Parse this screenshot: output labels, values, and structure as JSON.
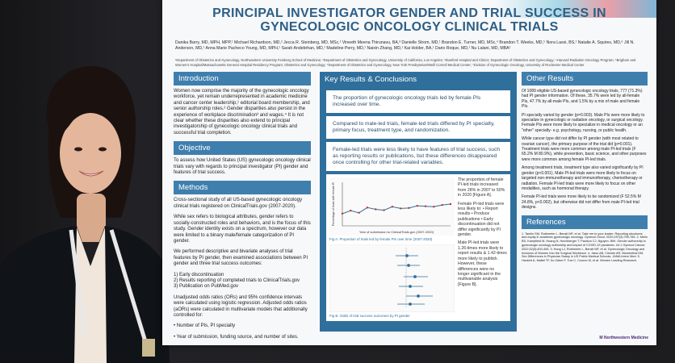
{
  "poster": {
    "title": "PRINCIPAL INVESTIGATOR GENDER AND TRIAL SUCCESS IN GYNECOLOGIC ONCOLOGY CLINICAL TRIALS",
    "authors": "Danika Barry, MD, MPH, MPP,¹ Michael Richardson, MD,² Jecca R. Steinberg, MD, MSc,¹ Vineeth Meena Thirunavu, BA,³ Danielle Strom, MD,¹ Brandon E. Turner, MD, MSc,⁴ Brandon T. Weeks, MD,⁵ Nora Lassi, BS,¹ Natalie A. Squires, MD,⁶ Jill N. Anderson, MD,¹ Anna Marie Pacheco Young, MD, MPH,¹ Sarah Andebrhan, MD,¹ Madeline Perry, MD,¹ Naixin Zhang, MD,¹ Kai Holder, BA,¹ Dario Roque, MD,¹ Nu Lalani, MD, MBA¹",
    "affiliations": "¹Department of Obstetrics and Gynecology, Northwestern University Feinberg School of Medicine; ²Department of Obstetrics and Gynecology, University of California, Los Angeles; ³Stanford Hospital and Clinics; Department of Obstetrics and Gynecology; ⁴Harvard Radiation Oncology Program; ⁵Brigham and Women's Hospital/Massachusetts General Hospital Residency Program; Obstetrics and Gynecology; ⁶Department of Obstetrics and Gynecology, New York Presbyterian/Weill Cornell Medical Center; ⁷Division of Gynecologic Oncology, University of Rochester Medical Center",
    "intro": {
      "heading": "Introduction",
      "text": "Women now comprise the majority of the gynecologic oncology workforce, yet remain underrepresented in academic medicine and cancer center leadership,¹ editorial board membership, and senior authorship roles.² Gender disparities also persist in the experience of workplace discrimination³ and wages.⁴ It is not clear whether these disparities also extend to principal investigatorship of gynecologic oncology clinical trials and successful trial completion."
    },
    "objective": {
      "heading": "Objective",
      "text": "To assess how United States (US) gynecologic oncology clinical trials vary with regards to principal investigator (PI) gender and features of trial success."
    },
    "methods": {
      "heading": "Methods",
      "p1": "Cross-sectional study of all US-based gynecologic oncology clinical trials registered on ClinicalTrials.gov (2007-2020).",
      "p2": "While sex refers to biological attributes, gender refers to socially-constructed roles and behaviors, and is the focus of this study. Gender identity exists on a spectrum, however our data were limited to a binary male/female categorization of PI gender.",
      "p3": "We performed descriptive and bivariate analyses of trial features by PI gender, then examined associations between PI gender and three trial success outcomes:",
      "outcomes": [
        "1) Early discontinuation",
        "2) Results reporting of completed trials to ClinicalTrials.gov",
        "3) Publication on PubMed.gov"
      ],
      "p4": "Unadjusted odds ratios (ORs) and 95% confidence intervals were calculated using logistic regression. Adjusted odds ratios (aORs) were calculated in multivariate models that additionally controlled for:",
      "controls": "• Year of submission, funding source, and number of sites.",
      "controls2": "• Number of PIs, PI specialty"
    },
    "key_results": {
      "heading": "Key Results & Conclusions",
      "p1": "The proportion of gynecologic oncology trials led by female PIs increased over time.",
      "p2": "Compared to male-led trials, female-led trials differed by PI specialty, primary focus, treatment type, and randomization.",
      "p3": "Female-led trials were less likely to have features of trial success, such as reporting results or publications, but these differences disappeared once controlling for other trial-related variables.",
      "fig_a_side": "The proportion of female PI-led trials increased from 28% in 2007 to 50% in 2020 [Figure A].",
      "fig_a_side2": "Female PI-led trials were less likely to: • Report results • Produce publications • Early discontinuation did not differ significantly by PI gender.",
      "fig_b_side": "Male PI-led trials were 1.26-times more likely to report results & 1.42-times more likely to publish. However, these differences were no longer significant in the multivariable analysis [Figure B].",
      "fig_a_cap": "Fig A. Proportion of trials led by female PIs over time (2007-2020)",
      "fig_b_cap": "Fig B. Odds of trial success outcomes by PI gender"
    },
    "other_results": {
      "heading": "Other Results",
      "p1": "Of 1089 eligible US-based gynecologic oncology trials, 777 (71.3%) had PI gender information. Of these, 35.7% were led by all-female PIs, 47.7% by all-male PIs, and 1.5% by a mix of male and female PIs.",
      "p2": "PI specialty varied by gender (p=0.003). Male PIs were more likely to specialize in gynecologic or radiation oncology, or surgical oncology. Female PIs were more likely to specialize in medical oncology or an \"other\" specialty- e.g. psychology, nursing, or public health.",
      "p3": "While cancer type did not differ by PI gender (with most related to ovarian cancer), the primary purpose of the trial did (p=0.001). Treatment trials were more common among male PI-led trials (F 65.2% M 80.9%), while prevention, basic science, and other purposes were more common among female PI-led trials.",
      "p4": "Among treatment trials, treatment type also varied significantly by PI gender (p<0.001). Male PI-led trials were more likely to focus on targeted non-immunotherapy and immunotherapy, chemotherapy or radiation. Female PI-led trials were more likely to focus on other modalities, such as hormonal therapy.",
      "p5": "Female PI-led trials were more likely to be randomized (F 52.5% M 24.8%, p<0.002), but otherwise did not differ from male PI-led trial designs."
    },
    "references": {
      "heading": "References",
      "text": "1. Tamlin SM, Ruthmeier L, Bensit MF, et al. Take me to your leader: Reporting structures and equity in academic gynecologic oncology. Gynecol Oncol. 2020;157(3):759-765. 2. Melin BS, Kampfield M, Huang N, Hinchberger T, Paulson CJ, Nguyen JNH. Gender authorship in gynecologic oncology authorship and impact of COVID-19 pandemic. Int J Gynecol Cancer. 2022;32(3):400-406. 3. Hong LJ, Ruthmeier L, Bensit MF, et al. Gynecologic Oncology and Inclusion of Women Into the Surgical Workforce. 4. Jaiso AB, Clemek AR, Blumenthal DM. Sex Differences in Physician Salary in US Public Medical Schools. JAMA Intern Med. 5. Hackert A, Mattel TF, Ito Zahm P, Tuvi C, Cuomo M, et al. Women Leading Research."
    },
    "footer_logo": "M Northwestern Medicine"
  },
  "chart_data": {
    "type": "line",
    "title": "",
    "xlabel": "Year of submission to ClinicalTrials.gov (2007-2020)",
    "ylabel": "Percentage of trials with female PI",
    "x": [
      2007,
      2008,
      2009,
      2010,
      2011,
      2012,
      2013,
      2014,
      2015,
      2016,
      2017,
      2018,
      2019,
      2020
    ],
    "series": [
      {
        "name": "Female PI",
        "values": [
          28,
          35,
          30,
          42,
          38,
          36,
          44,
          40,
          41,
          46,
          45,
          44,
          48,
          50
        ]
      }
    ],
    "ylim": [
      0,
      100
    ]
  },
  "colors": {
    "accent": "#3f7fae",
    "dark_accent": "#2f6f9c",
    "title": "#2d5f86"
  }
}
